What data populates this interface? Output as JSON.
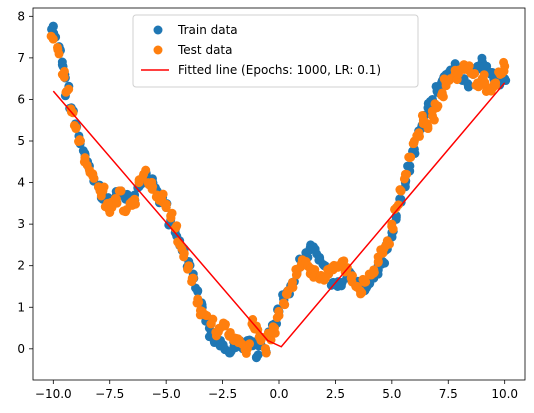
{
  "chart_data": {
    "type": "scatter",
    "title": "",
    "xlabel": "",
    "ylabel": "",
    "xlim": [
      -10.9,
      10.9
    ],
    "ylim": [
      -0.75,
      8.2
    ],
    "xticks": [
      -10.0,
      -7.5,
      -5.0,
      -2.5,
      0.0,
      2.5,
      5.0,
      7.5,
      10.0
    ],
    "xtick_labels": [
      "−10.0",
      "−7.5",
      "−5.0",
      "−2.5",
      "0.0",
      "2.5",
      "5.0",
      "7.5",
      "10.0"
    ],
    "yticks": [
      0,
      1,
      2,
      3,
      4,
      5,
      6,
      7,
      8
    ],
    "ytick_labels": [
      "0",
      "1",
      "2",
      "3",
      "4",
      "5",
      "6",
      "7",
      "8"
    ],
    "grid": false,
    "legend_position": "upper-center",
    "series": [
      {
        "name": "Train data",
        "type": "scatter",
        "color": "#1f77b4",
        "x": [
          -10.0,
          -9.9,
          -9.7,
          -9.6,
          -9.5,
          -9.4,
          -9.2,
          -9.0,
          -8.8,
          -8.6,
          -8.4,
          -8.2,
          -8.0,
          -7.8,
          -7.6,
          -7.4,
          -7.2,
          -7.0,
          -6.8,
          -6.6,
          -6.4,
          -6.2,
          -6.0,
          -5.8,
          -5.6,
          -5.4,
          -5.2,
          -5.0,
          -4.8,
          -4.6,
          -4.4,
          -4.2,
          -4.0,
          -3.8,
          -3.6,
          -3.4,
          -3.2,
          -3.0,
          -2.8,
          -2.6,
          -2.4,
          -2.2,
          -2.0,
          -1.8,
          -1.6,
          -1.4,
          -1.2,
          -1.0,
          -0.8,
          -0.6,
          -0.4,
          -0.2,
          0.0,
          0.2,
          0.4,
          0.6,
          0.8,
          1.0,
          1.2,
          1.4,
          1.6,
          1.8,
          2.0,
          2.2,
          2.4,
          2.6,
          2.8,
          3.0,
          3.2,
          3.4,
          3.6,
          3.8,
          4.0,
          4.2,
          4.4,
          4.6,
          4.8,
          5.0,
          5.2,
          5.4,
          5.6,
          5.8,
          6.0,
          6.2,
          6.4,
          6.6,
          6.8,
          7.0,
          7.2,
          7.4,
          7.6,
          7.8,
          8.0,
          8.2,
          8.4,
          8.6,
          8.8,
          9.0,
          9.2,
          9.4,
          9.6,
          9.8,
          10.0
        ],
        "y": [
          7.75,
          7.5,
          7.2,
          6.9,
          6.6,
          6.2,
          5.8,
          5.4,
          5.0,
          4.7,
          4.4,
          4.1,
          3.9,
          3.7,
          3.6,
          3.55,
          3.7,
          3.8,
          3.6,
          3.5,
          3.7,
          3.9,
          4.0,
          4.1,
          4.0,
          3.8,
          3.6,
          3.4,
          3.1,
          2.8,
          2.6,
          2.4,
          2.1,
          1.8,
          1.4,
          1.0,
          0.7,
          0.4,
          0.2,
          0.1,
          0.0,
          -0.1,
          0.05,
          0.1,
          0.0,
          0.2,
          0.1,
          -0.2,
          0.1,
          0.0,
          0.4,
          0.6,
          0.9,
          1.2,
          1.4,
          1.6,
          1.9,
          2.1,
          2.3,
          2.5,
          2.4,
          2.2,
          2.0,
          1.8,
          1.6,
          1.5,
          1.6,
          1.7,
          1.8,
          1.6,
          1.5,
          1.4,
          1.6,
          1.7,
          1.9,
          2.1,
          2.4,
          2.8,
          3.2,
          3.6,
          4.0,
          4.4,
          4.8,
          5.2,
          5.5,
          5.8,
          6.0,
          6.2,
          6.4,
          6.6,
          6.7,
          6.75,
          6.7,
          6.5,
          6.3,
          6.6,
          6.8,
          6.9,
          6.8,
          6.6,
          6.5,
          6.4,
          6.5
        ],
        "visual_note": "approximately 300 blue markers"
      },
      {
        "name": "Test data",
        "type": "scatter",
        "color": "#ff7f0e",
        "x": [
          -10.0,
          -9.8,
          -9.6,
          -9.4,
          -9.2,
          -9.0,
          -8.8,
          -8.6,
          -8.4,
          -8.2,
          -8.0,
          -7.8,
          -7.6,
          -7.4,
          -7.2,
          -7.0,
          -6.8,
          -6.6,
          -6.4,
          -6.2,
          -6.0,
          -5.8,
          -5.6,
          -5.4,
          -5.2,
          -5.0,
          -4.8,
          -4.6,
          -4.4,
          -4.2,
          -4.0,
          -3.8,
          -3.6,
          -3.4,
          -3.2,
          -3.0,
          -2.8,
          -2.6,
          -2.4,
          -2.2,
          -2.0,
          -1.8,
          -1.6,
          -1.4,
          -1.2,
          -1.0,
          -0.8,
          -0.6,
          -0.4,
          -0.2,
          0.0,
          0.2,
          0.4,
          0.6,
          0.8,
          1.0,
          1.2,
          1.4,
          1.6,
          1.8,
          2.0,
          2.2,
          2.4,
          2.6,
          2.8,
          3.0,
          3.2,
          3.4,
          3.6,
          3.8,
          4.0,
          4.2,
          4.4,
          4.6,
          4.8,
          5.0,
          5.2,
          5.4,
          5.6,
          5.8,
          6.0,
          6.2,
          6.4,
          6.6,
          6.8,
          7.0,
          7.2,
          7.4,
          7.6,
          7.8,
          8.0,
          8.2,
          8.4,
          8.6,
          8.8,
          9.0,
          9.2,
          9.4,
          9.6,
          9.8,
          10.0
        ],
        "y": [
          7.45,
          7.2,
          6.6,
          6.2,
          5.7,
          5.3,
          5.0,
          4.6,
          4.3,
          4.1,
          3.9,
          3.8,
          3.5,
          3.4,
          3.6,
          3.8,
          3.3,
          3.5,
          3.6,
          4.0,
          4.2,
          4.0,
          3.9,
          3.7,
          3.6,
          3.4,
          3.2,
          2.9,
          2.5,
          2.3,
          2.0,
          1.7,
          1.2,
          0.9,
          0.8,
          0.6,
          0.4,
          0.5,
          0.55,
          0.3,
          0.2,
          0.15,
          0.1,
          0.0,
          0.6,
          0.55,
          0.2,
          0.0,
          0.3,
          0.5,
          0.8,
          1.1,
          1.4,
          1.6,
          1.8,
          2.05,
          2.1,
          1.9,
          1.8,
          1.7,
          1.65,
          1.8,
          1.9,
          2.0,
          2.1,
          1.9,
          1.7,
          1.5,
          1.4,
          1.6,
          1.8,
          1.9,
          2.1,
          2.3,
          2.6,
          3.0,
          3.4,
          3.8,
          4.2,
          4.6,
          5.0,
          5.2,
          5.5,
          5.3,
          5.6,
          5.8,
          6.1,
          6.4,
          6.5,
          6.6,
          6.7,
          6.8,
          6.7,
          6.6,
          6.4,
          6.5,
          6.3,
          6.2,
          6.4,
          6.6,
          6.8
        ],
        "visual_note": "approximately 250 orange markers"
      },
      {
        "name": "Fitted line (Epochs: 1000, LR: 0.1)",
        "type": "line",
        "color": "#ff0000",
        "x": [
          -10.0,
          -0.5,
          0.1,
          10.0
        ],
        "y": [
          6.2,
          0.2,
          0.05,
          6.4
        ]
      }
    ]
  }
}
